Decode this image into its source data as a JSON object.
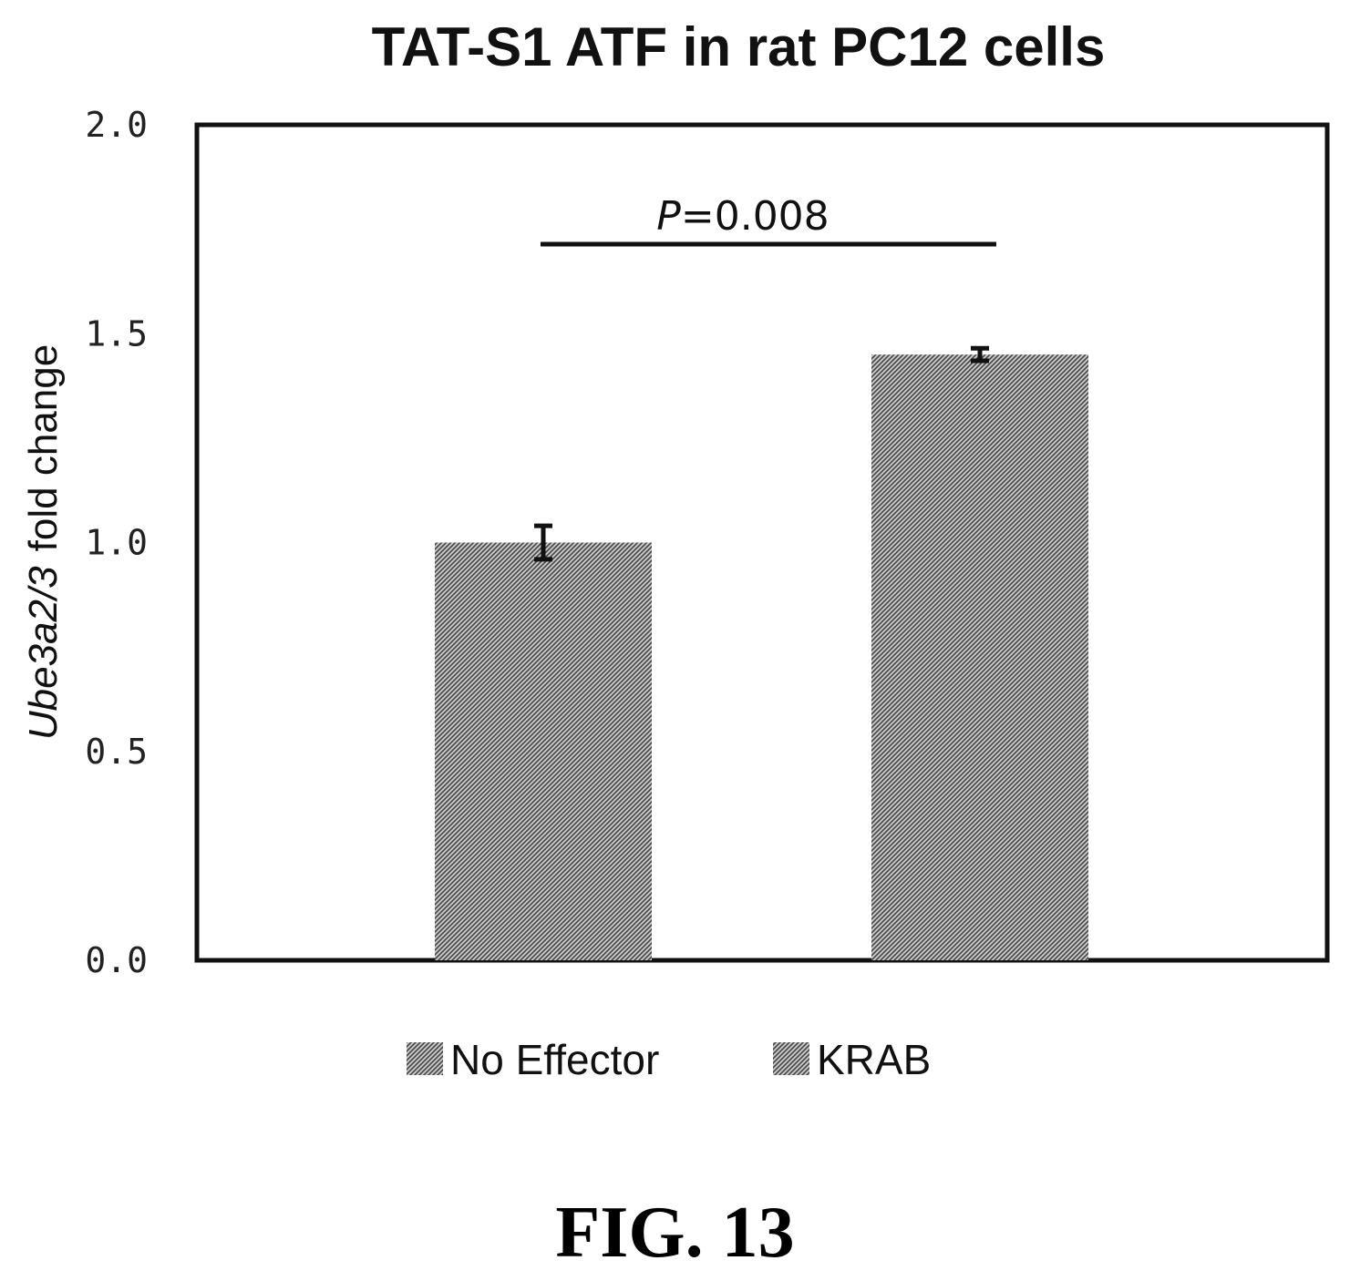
{
  "figure_label": "FIG. 13",
  "chart_data": {
    "type": "bar",
    "title": "TAT-S1 ATF in rat PC12 cells",
    "ylabel_italic": "Ube3a2/3",
    "ylabel_rest": "fold change",
    "ylim": [
      0,
      2.0
    ],
    "yticks": [
      "0.0",
      "0.5",
      "1.0",
      "1.5",
      "2.0"
    ],
    "ytick_values": [
      0,
      0.5,
      1.0,
      1.5,
      2.0
    ],
    "grid": false,
    "legend_position": "bottom",
    "series": [
      {
        "name": "No Effector",
        "value": 1.0,
        "error": 0.04
      },
      {
        "name": "KRAB",
        "value": 1.45,
        "error": 0.015
      }
    ],
    "annotation": {
      "p_label": "P",
      "p_rest": "=0.008"
    },
    "colors": {
      "bar_fill": "#8a8a8a",
      "axis": "#111111"
    }
  }
}
